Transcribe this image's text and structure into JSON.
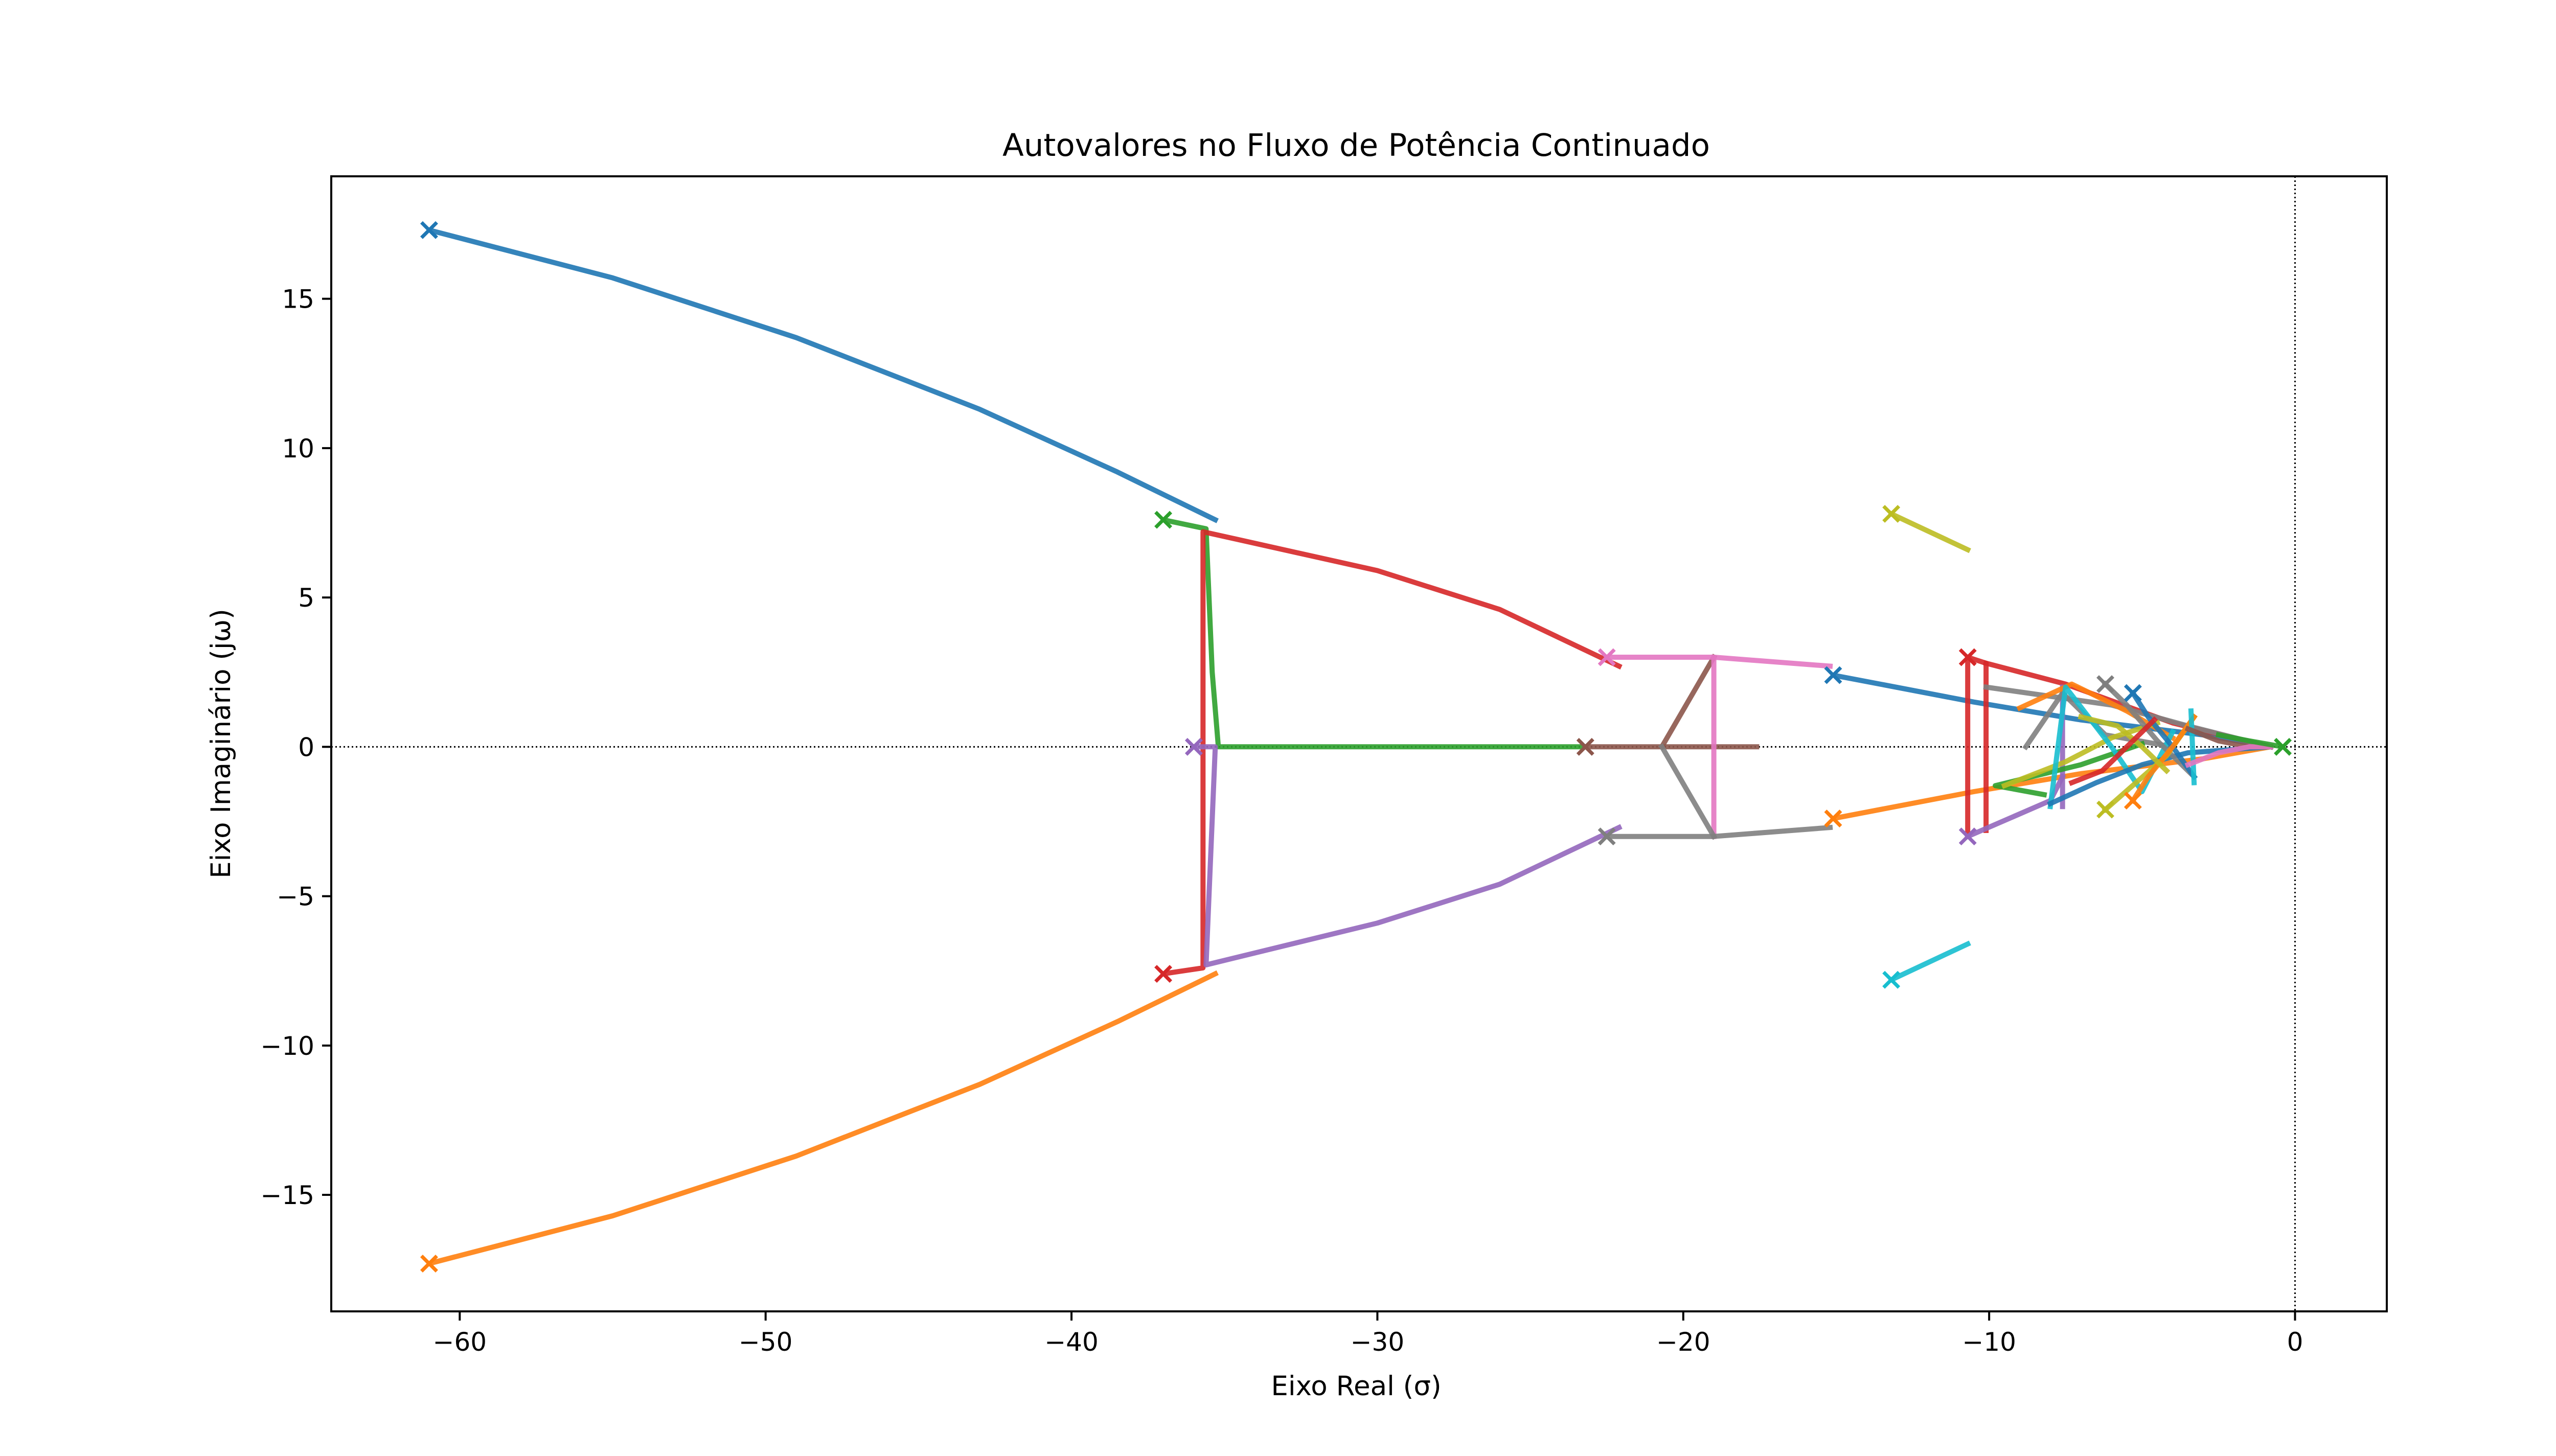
{
  "chart_data": {
    "type": "line",
    "title": "Autovalores no Fluxo de Potência Continuado",
    "xlabel": "Eixo Real (σ)",
    "ylabel": "Eixo Imaginário (jω)",
    "xlim": [
      -64.2,
      3.0
    ],
    "ylim": [
      -18.9,
      19.1
    ],
    "x_ticks": [
      -60,
      -50,
      -40,
      -30,
      -20,
      -10,
      0
    ],
    "y_ticks": [
      -15,
      -10,
      -5,
      0,
      5,
      10,
      15
    ],
    "x_tick_labels": [
      "−60",
      "−50",
      "−40",
      "−30",
      "−20",
      "−10",
      "0"
    ],
    "y_tick_labels": [
      "−15",
      "−10",
      "−5",
      "0",
      "5",
      "10",
      "15"
    ],
    "reference_lines": {
      "horizontal_y": 0,
      "vertical_x": 0,
      "style": "dotted"
    },
    "start_marker": "x",
    "colors": {
      "blue": "#1f77b4",
      "orange": "#ff7f0e",
      "green": "#2ca02c",
      "red": "#d62728",
      "purple": "#9467bd",
      "brown": "#8c564b",
      "pink": "#e377c2",
      "gray": "#7f7f7f",
      "olive": "#bcbd22",
      "cyan": "#17becf"
    },
    "series": [
      {
        "color": "#1f77b4",
        "points": [
          [
            -61.0,
            17.3
          ],
          [
            -55.0,
            15.7
          ],
          [
            -49.0,
            13.7
          ],
          [
            -43.0,
            11.3
          ],
          [
            -38.5,
            9.2
          ],
          [
            -35.3,
            7.6
          ]
        ]
      },
      {
        "color": "#ff7f0e",
        "points": [
          [
            -61.0,
            -17.3
          ],
          [
            -55.0,
            -15.7
          ],
          [
            -49.0,
            -13.7
          ],
          [
            -43.0,
            -11.3
          ],
          [
            -38.5,
            -9.2
          ],
          [
            -35.3,
            -7.6
          ]
        ]
      },
      {
        "color": "#2ca02c",
        "points": [
          [
            -37.0,
            7.6
          ],
          [
            -35.6,
            7.3
          ],
          [
            -35.4,
            2.5
          ],
          [
            -35.2,
            0.0
          ],
          [
            -23.2,
            0.0
          ]
        ]
      },
      {
        "color": "#d62728",
        "points": [
          [
            -37.0,
            -7.6
          ],
          [
            -35.7,
            -7.4
          ],
          [
            -35.7,
            7.2
          ],
          [
            -30.0,
            5.9
          ],
          [
            -26.0,
            4.6
          ],
          [
            -22.1,
            2.7
          ]
        ]
      },
      {
        "color": "#9467bd",
        "points": [
          [
            -36.0,
            0.0
          ],
          [
            -35.3,
            0.0
          ],
          [
            -35.6,
            -7.3
          ],
          [
            -30.0,
            -5.9
          ],
          [
            -26.0,
            -4.6
          ],
          [
            -22.1,
            -2.7
          ]
        ]
      },
      {
        "color": "#8c564b",
        "points": [
          [
            -23.2,
            0.0
          ],
          [
            -17.6,
            0.0
          ]
        ]
      },
      {
        "color": "#8c564b",
        "points": [
          [
            -20.7,
            0.0
          ],
          [
            -19.0,
            3.0
          ]
        ]
      },
      {
        "color": "#e377c2",
        "points": [
          [
            -22.5,
            3.0
          ],
          [
            -19.0,
            3.0
          ],
          [
            -19.0,
            -3.0
          ]
        ]
      },
      {
        "color": "#e377c2",
        "points": [
          [
            -19.0,
            3.0
          ],
          [
            -15.2,
            2.7
          ]
        ]
      },
      {
        "color": "#7f7f7f",
        "points": [
          [
            -22.5,
            -3.0
          ],
          [
            -19.0,
            -3.0
          ],
          [
            -15.2,
            -2.7
          ]
        ]
      },
      {
        "color": "#7f7f7f",
        "points": [
          [
            -20.7,
            0.0
          ],
          [
            -19.0,
            -3.0
          ]
        ]
      },
      {
        "color": "#1f77b4",
        "points": [
          [
            -15.1,
            2.4
          ],
          [
            -10.5,
            1.5
          ],
          [
            -7.0,
            0.9
          ],
          [
            -3.0,
            0.4
          ],
          [
            -0.8,
            0.0
          ]
        ]
      },
      {
        "color": "#ff7f0e",
        "points": [
          [
            -15.1,
            -2.4
          ],
          [
            -10.5,
            -1.5
          ],
          [
            -7.0,
            -0.9
          ],
          [
            -3.0,
            -0.4
          ],
          [
            -0.8,
            0.0
          ]
        ]
      },
      {
        "color": "#bcbd22",
        "points": [
          [
            -13.2,
            7.8
          ],
          [
            -10.7,
            6.6
          ]
        ]
      },
      {
        "color": "#17becf",
        "points": [
          [
            -13.2,
            -7.8
          ],
          [
            -10.7,
            -6.6
          ]
        ]
      },
      {
        "color": "#d62728",
        "points": [
          [
            -10.7,
            3.0
          ],
          [
            -10.7,
            -3.0
          ]
        ]
      },
      {
        "color": "#d62728",
        "points": [
          [
            -10.7,
            3.0
          ],
          [
            -10.1,
            2.8
          ],
          [
            -10.1,
            -2.8
          ]
        ]
      },
      {
        "color": "#9467bd",
        "points": [
          [
            -10.7,
            -3.0
          ],
          [
            -8.0,
            -1.8
          ],
          [
            -7.6,
            -1.0
          ]
        ]
      },
      {
        "color": "#d62728",
        "points": [
          [
            -10.1,
            2.8
          ],
          [
            -7.5,
            2.1
          ],
          [
            -4.0,
            0.8
          ],
          [
            -0.8,
            0.0
          ]
        ]
      },
      {
        "color": "#7f7f7f",
        "points": [
          [
            -10.1,
            2.0
          ],
          [
            -6.0,
            1.4
          ],
          [
            -3.5,
            0.7
          ],
          [
            -0.8,
            0.0
          ]
        ]
      },
      {
        "color": "#9467bd",
        "points": [
          [
            -7.6,
            2.0
          ],
          [
            -7.6,
            -2.0
          ]
        ]
      },
      {
        "color": "#7f7f7f",
        "points": [
          [
            -8.8,
            0.0
          ],
          [
            -7.6,
            1.8
          ],
          [
            -6.2,
            0.4
          ],
          [
            -4.0,
            0.0
          ]
        ]
      },
      {
        "color": "#ff7f0e",
        "points": [
          [
            -9.0,
            1.3
          ],
          [
            -7.3,
            2.1
          ],
          [
            -5.5,
            1.2
          ],
          [
            -4.0,
            0.3
          ]
        ]
      },
      {
        "color": "#2ca02c",
        "points": [
          [
            -8.2,
            -1.6
          ],
          [
            -9.8,
            -1.3
          ],
          [
            -7.0,
            -0.6
          ],
          [
            -5.0,
            0.1
          ]
        ]
      },
      {
        "color": "#bcbd22",
        "points": [
          [
            -9.5,
            -1.3
          ],
          [
            -7.5,
            -0.5
          ],
          [
            -6.0,
            0.3
          ],
          [
            -4.5,
            0.8
          ]
        ]
      },
      {
        "color": "#17becf",
        "points": [
          [
            -8.0,
            -2.0
          ],
          [
            -7.5,
            2.0
          ],
          [
            -6.0,
            0.0
          ],
          [
            -5.0,
            -1.5
          ],
          [
            -4.0,
            0.5
          ]
        ]
      },
      {
        "color": "#1f77b4",
        "points": [
          [
            -8.0,
            -1.9
          ],
          [
            -6.5,
            -1.2
          ],
          [
            -5.0,
            -0.6
          ],
          [
            -3.5,
            -0.2
          ],
          [
            -0.8,
            0.0
          ]
        ]
      },
      {
        "color": "#7f7f7f",
        "points": [
          [
            -6.2,
            2.1
          ],
          [
            -5.5,
            1.4
          ],
          [
            -4.5,
            0.2
          ],
          [
            -3.3,
            -1.0
          ]
        ]
      },
      {
        "color": "#bcbd22",
        "points": [
          [
            -6.2,
            -2.1
          ],
          [
            -5.2,
            -1.2
          ],
          [
            -4.2,
            -0.3
          ],
          [
            -3.3,
            1.0
          ]
        ]
      },
      {
        "color": "#1f77b4",
        "points": [
          [
            -5.3,
            1.8
          ],
          [
            -4.8,
            1.0
          ],
          [
            -4.0,
            0.0
          ],
          [
            -3.3,
            -1.0
          ]
        ]
      },
      {
        "color": "#ff7f0e",
        "points": [
          [
            -5.3,
            -1.8
          ],
          [
            -4.8,
            -1.0
          ],
          [
            -4.0,
            0.0
          ],
          [
            -3.3,
            1.0
          ]
        ]
      },
      {
        "color": "#17becf",
        "points": [
          [
            -3.4,
            1.2
          ],
          [
            -3.3,
            -1.2
          ]
        ]
      },
      {
        "color": "#8c564b",
        "points": [
          [
            -3.5,
            0.6
          ],
          [
            -2.5,
            0.2
          ],
          [
            -1.5,
            0.0
          ],
          [
            -0.8,
            0.0
          ]
        ]
      },
      {
        "color": "#e377c2",
        "points": [
          [
            -3.5,
            -0.6
          ],
          [
            -2.5,
            -0.2
          ],
          [
            -1.5,
            0.0
          ],
          [
            -0.8,
            0.0
          ]
        ]
      },
      {
        "color": "#2ca02c",
        "points": [
          [
            -2.5,
            0.4
          ],
          [
            -1.5,
            0.2
          ],
          [
            -0.4,
            0.0
          ]
        ]
      },
      {
        "color": "#bcbd22",
        "points": [
          [
            -7.0,
            1.0
          ],
          [
            -5.8,
            0.7
          ],
          [
            -5.0,
            0.0
          ],
          [
            -4.2,
            -0.8
          ]
        ]
      },
      {
        "color": "#d62728",
        "points": [
          [
            -7.3,
            -1.2
          ],
          [
            -6.3,
            -0.8
          ],
          [
            -5.4,
            0.1
          ],
          [
            -4.6,
            0.9
          ]
        ]
      }
    ],
    "start_points": [
      {
        "color": "#1f77b4",
        "x": -61.0,
        "y": 17.3
      },
      {
        "color": "#ff7f0e",
        "x": -61.0,
        "y": -17.3
      },
      {
        "color": "#2ca02c",
        "x": -37.0,
        "y": 7.6
      },
      {
        "color": "#d62728",
        "x": -37.0,
        "y": -7.6
      },
      {
        "color": "#9467bd",
        "x": -36.0,
        "y": 0.0
      },
      {
        "color": "#8c564b",
        "x": -23.2,
        "y": 0.0
      },
      {
        "color": "#e377c2",
        "x": -22.5,
        "y": 3.0
      },
      {
        "color": "#7f7f7f",
        "x": -22.5,
        "y": -3.0
      },
      {
        "color": "#1f77b4",
        "x": -15.1,
        "y": 2.4
      },
      {
        "color": "#ff7f0e",
        "x": -15.1,
        "y": -2.4
      },
      {
        "color": "#bcbd22",
        "x": -13.2,
        "y": 7.8
      },
      {
        "color": "#17becf",
        "x": -13.2,
        "y": -7.8
      },
      {
        "color": "#d62728",
        "x": -10.7,
        "y": 3.0
      },
      {
        "color": "#9467bd",
        "x": -10.7,
        "y": -3.0
      },
      {
        "color": "#7f7f7f",
        "x": -6.2,
        "y": 2.1
      },
      {
        "color": "#bcbd22",
        "x": -6.2,
        "y": -2.1
      },
      {
        "color": "#1f77b4",
        "x": -5.3,
        "y": 1.8
      },
      {
        "color": "#ff7f0e",
        "x": -5.3,
        "y": -1.8
      },
      {
        "color": "#2ca02c",
        "x": -0.4,
        "y": 0.0
      }
    ]
  }
}
